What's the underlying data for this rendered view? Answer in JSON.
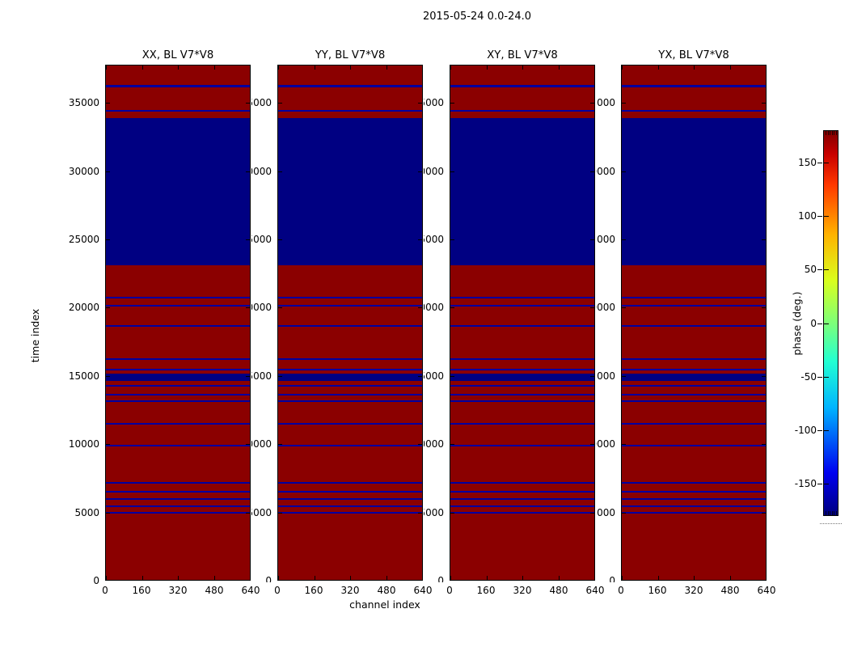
{
  "figure": {
    "suptitle": "2015-05-24 0.0-24.0",
    "xlabel": "channel index",
    "ylabel": "time index",
    "colorbar_label": "phase (deg.)"
  },
  "chart_data": {
    "type": "heatmap",
    "title": "2015-05-24 0.0-24.0",
    "panels": [
      {
        "title": "XX, BL V7*V8"
      },
      {
        "title": "YY, BL V7*V8"
      },
      {
        "title": "XY, BL V7*V8"
      },
      {
        "title": "YX, BL V7*V8"
      }
    ],
    "xlabel": "channel index",
    "ylabel": "time index",
    "x_range": [
      0,
      640
    ],
    "x_ticks": [
      0,
      160,
      320,
      480,
      640
    ],
    "y_range": [
      0,
      37800
    ],
    "y_ticks": [
      0,
      5000,
      10000,
      15000,
      20000,
      25000,
      30000,
      35000
    ],
    "grid": false,
    "background_phase_deg": 180,
    "band_phase_deg": -180,
    "colors": {
      "background": "#8b0000",
      "band_block": "#000082",
      "band_thin": "#0000a0",
      "axis": "#000000"
    },
    "bands_time_index": [
      [
        4890,
        5010
      ],
      [
        5395,
        5515
      ],
      [
        5930,
        6050
      ],
      [
        6460,
        6580
      ],
      [
        7115,
        7235
      ],
      [
        9840,
        9960
      ],
      [
        11410,
        11530
      ],
      [
        13070,
        13190
      ],
      [
        13575,
        13695
      ],
      [
        14200,
        14320
      ],
      [
        14640,
        15180
      ],
      [
        15390,
        15500
      ],
      [
        16185,
        16305
      ],
      [
        18620,
        18740
      ],
      [
        20070,
        20190
      ],
      [
        20690,
        20810
      ],
      [
        23100,
        33890
      ],
      [
        34380,
        34500
      ],
      [
        36150,
        36330
      ]
    ],
    "bands_same_for_all_panels": true,
    "colorbar": {
      "label": "phase (deg.)",
      "range": [
        -180,
        180
      ],
      "ticks": [
        -150,
        -100,
        -50,
        0,
        50,
        100,
        150
      ],
      "colormap": "jet",
      "legend_position": "right"
    }
  }
}
